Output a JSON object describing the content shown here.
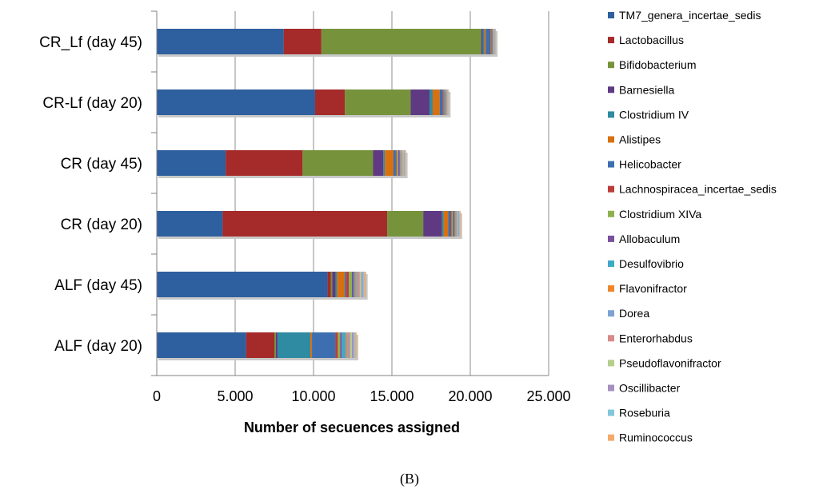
{
  "chart_data": {
    "type": "bar",
    "orientation": "horizontal",
    "stacked": true,
    "categories": [
      "CR_Lf (day 45)",
      "CR-Lf (day 20)",
      "CR (day 45)",
      "CR (day 20)",
      "ALF (day 45)",
      "ALF (day 20)"
    ],
    "xlabel": "Number of secuences assigned",
    "xlim": [
      0,
      25000
    ],
    "xticks": [
      0,
      5000,
      10000,
      15000,
      20000,
      25000
    ],
    "xtick_labels": [
      "0",
      "5.000",
      "10.000",
      "15.000",
      "20.000",
      "25.000"
    ],
    "grid": true,
    "legend_position": "right",
    "panel_label": "(B)",
    "series": [
      {
        "name": "TM7_genera_incertae_sedis",
        "color": "#2e5f9e",
        "values": [
          8100,
          10100,
          4400,
          4200,
          10900,
          5700
        ]
      },
      {
        "name": "Lactobacillus",
        "color": "#a52a2a",
        "values": [
          2400,
          1900,
          4900,
          10500,
          200,
          1800
        ]
      },
      {
        "name": "Bifidobacterium",
        "color": "#76933c",
        "values": [
          10200,
          4200,
          4500,
          2300,
          100,
          100
        ]
      },
      {
        "name": "Barnesiella",
        "color": "#5f3a82",
        "values": [
          100,
          1200,
          650,
          1200,
          200,
          100
        ]
      },
      {
        "name": "Clostridium IV",
        "color": "#2e8ba2",
        "values": [
          100,
          200,
          100,
          100,
          100,
          2100
        ]
      },
      {
        "name": "Alistipes",
        "color": "#d9700f",
        "values": [
          100,
          450,
          550,
          300,
          500,
          100
        ]
      },
      {
        "name": "Helicobacter",
        "color": "#3d6fb0",
        "values": [
          250,
          200,
          150,
          150,
          100,
          1500
        ]
      },
      {
        "name": "Lachnospiracea_incertae_sedis",
        "color": "#bd3c3a",
        "values": [
          50,
          50,
          50,
          50,
          150,
          150
        ]
      },
      {
        "name": "Clostridium XIVa",
        "color": "#8fb050",
        "values": [
          50,
          50,
          100,
          100,
          200,
          150
        ]
      },
      {
        "name": "Allobaculum",
        "color": "#7a4f9e",
        "values": [
          50,
          50,
          100,
          80,
          100,
          100
        ]
      },
      {
        "name": "Desulfovibrio",
        "color": "#3fa9c8",
        "values": [
          30,
          30,
          50,
          50,
          100,
          250
        ]
      },
      {
        "name": "Flavonifractor",
        "color": "#f0862a",
        "values": [
          30,
          30,
          50,
          50,
          100,
          100
        ]
      },
      {
        "name": "Dorea",
        "color": "#7ea3d2",
        "values": [
          30,
          30,
          50,
          50,
          100,
          100
        ]
      },
      {
        "name": "Enterorhabdus",
        "color": "#d88a8a",
        "values": [
          30,
          30,
          50,
          50,
          100,
          100
        ]
      },
      {
        "name": "Pseudoflavonifractor",
        "color": "#b5ce8c",
        "values": [
          30,
          30,
          50,
          50,
          100,
          100
        ]
      },
      {
        "name": "Oscillibacter",
        "color": "#a390bf",
        "values": [
          30,
          30,
          50,
          50,
          100,
          100
        ]
      },
      {
        "name": "Roseburia",
        "color": "#82c6da",
        "values": [
          30,
          30,
          50,
          50,
          100,
          100
        ]
      },
      {
        "name": "Ruminococcus",
        "color": "#f5a96b",
        "values": [
          30,
          30,
          50,
          50,
          100,
          100
        ]
      }
    ]
  }
}
